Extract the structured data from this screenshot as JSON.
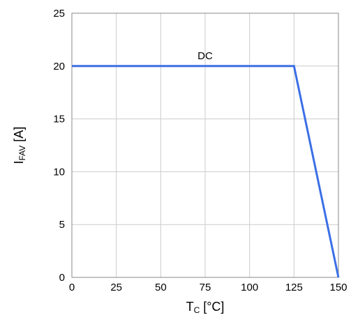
{
  "chart_data": {
    "type": "line",
    "title": "",
    "xlabel": {
      "main": "T",
      "sub": "C",
      "unit": " [°C]"
    },
    "ylabel": {
      "main": "I",
      "sub": "FAV",
      "unit": " [A]"
    },
    "xlim": [
      0,
      150
    ],
    "ylim": [
      0,
      25
    ],
    "xticks": [
      0,
      25,
      50,
      75,
      100,
      125,
      150
    ],
    "yticks": [
      0,
      5,
      10,
      15,
      20,
      25
    ],
    "grid": true,
    "series": [
      {
        "name": "DC",
        "color": "#3b6fe6",
        "x": [
          0,
          125,
          150
        ],
        "y": [
          20,
          20,
          0
        ]
      }
    ],
    "annotations": [
      {
        "text": "DC",
        "x": 75,
        "y": 20
      }
    ]
  }
}
